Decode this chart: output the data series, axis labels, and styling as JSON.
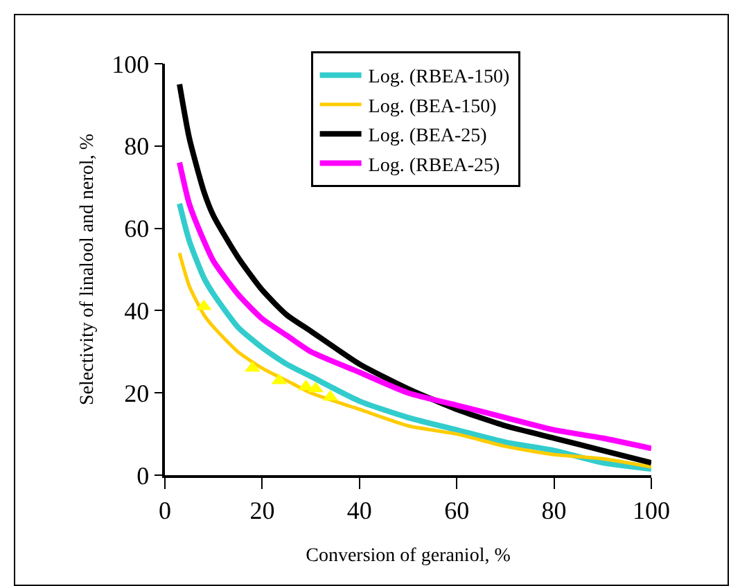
{
  "chart_data": {
    "type": "line",
    "xlabel": "Conversion of geraniol, %",
    "ylabel": "Selectivity of linalool and nerol, %",
    "x": [
      3,
      5,
      8,
      10,
      15,
      20,
      25,
      30,
      40,
      50,
      60,
      70,
      80,
      90,
      100
    ],
    "series": [
      {
        "name": "Log. (RBEA-150)",
        "color": "#33cccc",
        "values": [
          66,
          57,
          48,
          44,
          36,
          31,
          27,
          24,
          18,
          14,
          11,
          8,
          6,
          3,
          1.5
        ]
      },
      {
        "name": "Log. (BEA-150)",
        "color": "#ffcc00",
        "values": [
          54,
          46,
          39,
          36,
          30,
          26,
          23,
          20,
          16,
          12,
          10,
          7,
          5,
          4,
          2
        ]
      },
      {
        "name": "Log. (BEA-25)",
        "color": "#000000",
        "values": [
          95,
          82,
          69,
          63,
          53,
          45,
          39,
          35,
          27,
          21,
          16,
          12,
          9,
          6,
          3
        ]
      },
      {
        "name": "Log. (RBEA-25)",
        "color": "#ff00ff",
        "values": [
          76,
          66,
          57,
          52,
          44,
          38,
          34,
          30,
          25,
          20,
          17,
          14,
          11,
          9,
          6.5
        ]
      },
      {
        "type": "scatter",
        "marker": "triangle",
        "color": "#ffff00",
        "x": [
          8,
          18,
          23.5,
          29,
          31,
          34
        ],
        "values": [
          41,
          26,
          23,
          21.5,
          21,
          19
        ]
      }
    ],
    "xlim": [
      0,
      100
    ],
    "xticks": [
      0,
      20,
      40,
      60,
      80,
      100
    ],
    "ylim": [
      0,
      100
    ],
    "yticks": [
      0,
      20,
      40,
      60,
      80,
      100
    ],
    "grid": false,
    "legend": "top right",
    "marker": "none",
    "line_style": "solid"
  }
}
